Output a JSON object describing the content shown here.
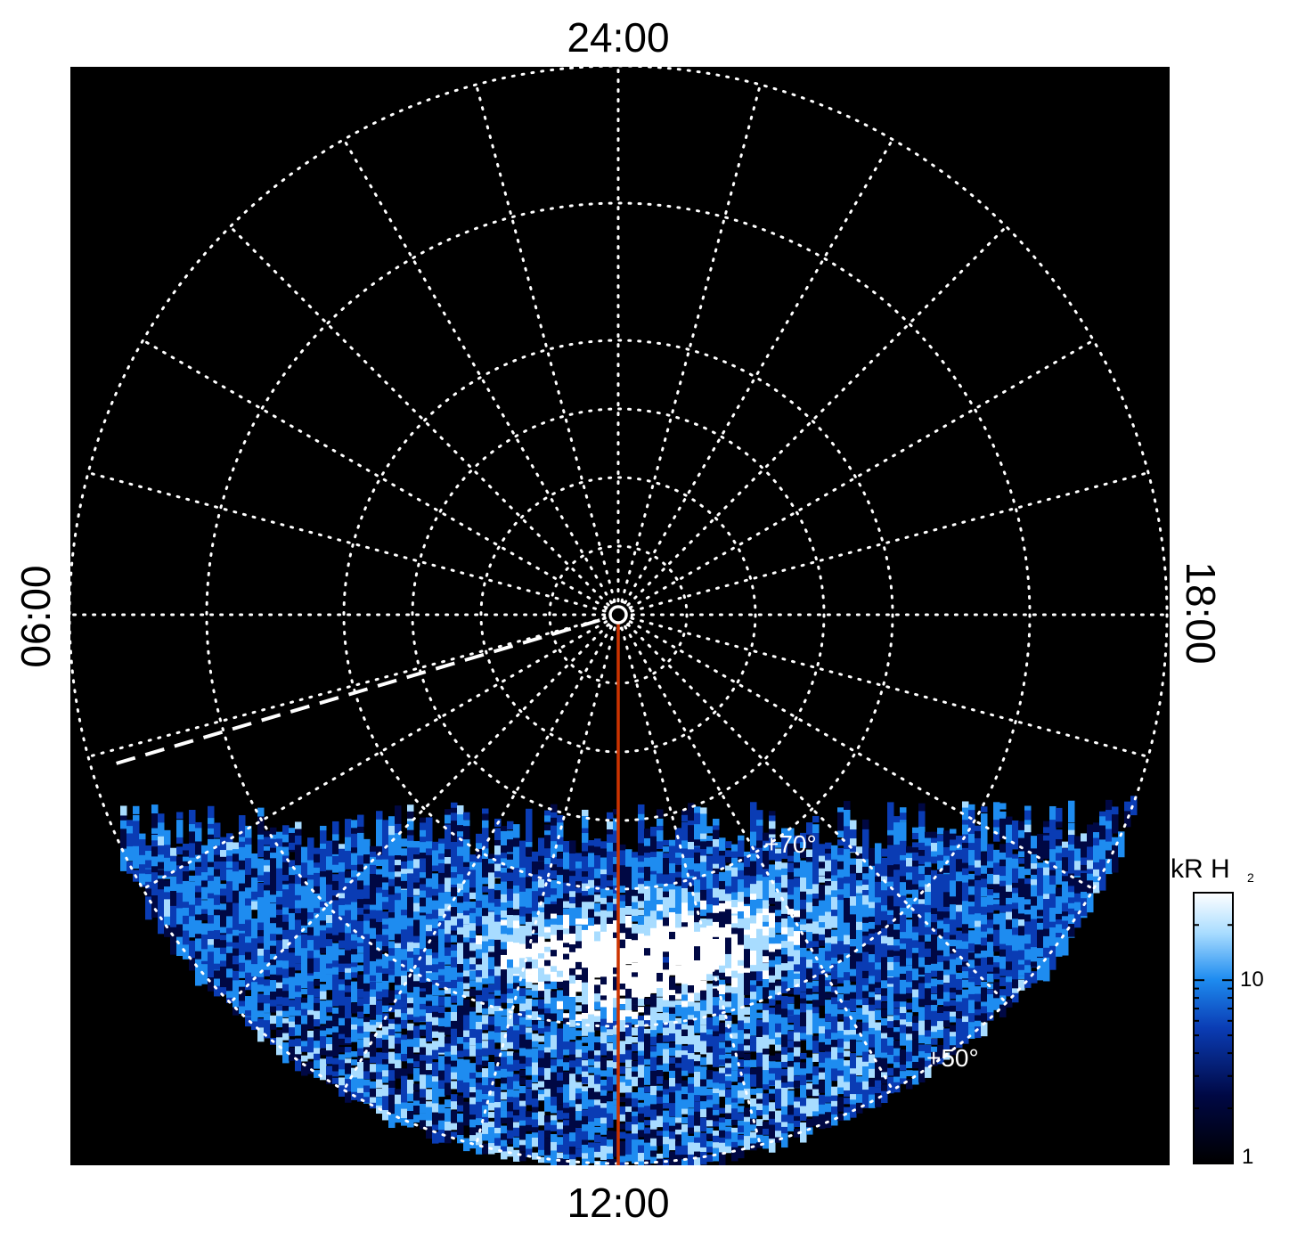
{
  "chart_data": {
    "type": "heatmap",
    "projection": "polar",
    "background_color": "#000000",
    "grid": true,
    "grid_style": "dotted",
    "grid_color": "#ffffff",
    "local_time_labels": {
      "top": "24:00",
      "left": "06:00",
      "right": "18:00",
      "bottom": "12:00"
    },
    "latitude_rings_deg": [
      60,
      70,
      75,
      80,
      85,
      89
    ],
    "latitude_annotations": [
      {
        "label": "+70°",
        "value": 70
      },
      {
        "label": "+50°",
        "value": 50
      }
    ],
    "outer_latitude_deg": 50,
    "meridian_step_hours": 1,
    "highlighted_meridian": {
      "local_time_hours": 12,
      "color": "#cc3300"
    },
    "dashed_meridian": {
      "local_time_hours": 7.1,
      "color": "#ffffff"
    },
    "auroral_oval": {
      "peak_latitude_deg": 65,
      "center_local_time_hours": 12.3
    },
    "colorbar": {
      "title": "kR H",
      "title_subscript": "2",
      "scale": "log",
      "range": [
        1,
        30
      ],
      "tick_labels": [
        "1",
        "10"
      ],
      "tick_values": [
        1,
        10
      ],
      "colors": [
        "#000000",
        "#000844",
        "#0a3cb4",
        "#1e8cf0",
        "#a8dcff",
        "#ffffff"
      ]
    }
  }
}
